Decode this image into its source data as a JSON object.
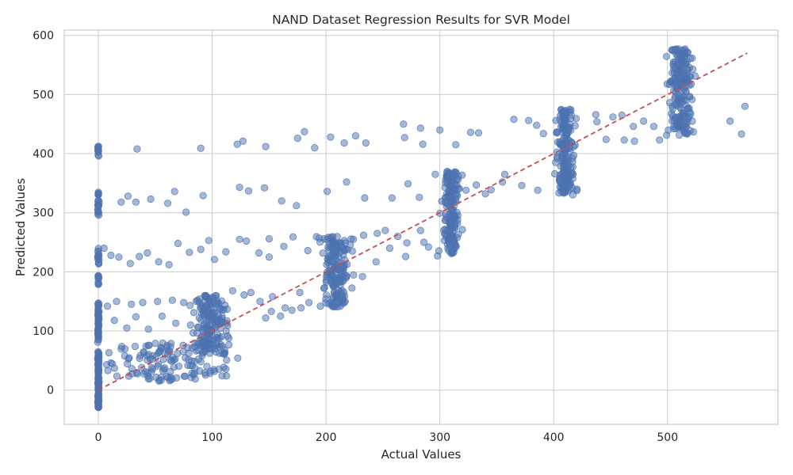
{
  "chart_data": {
    "type": "scatter",
    "title": "NAND Dataset Regression Results for SVR Model",
    "xlabel": "Actual Values",
    "ylabel": "Predicted Values",
    "xlim": [
      -30,
      597
    ],
    "ylim": [
      -58,
      609
    ],
    "x_ticks": [
      0,
      100,
      200,
      300,
      400,
      500
    ],
    "y_ticks": [
      0,
      100,
      200,
      300,
      400,
      500,
      600
    ],
    "grid": true,
    "legend": "none",
    "point_color": "#4c72b0",
    "point_alpha": 0.5,
    "reference_line": {
      "style": "dashed",
      "color": "#c44e52",
      "from": [
        0,
        0
      ],
      "to": [
        570,
        570
      ]
    },
    "clusters": [
      {
        "x_center": 0,
        "x_spread": 0.5,
        "y_min": -30,
        "y_max": 65,
        "count": 110
      },
      {
        "x_center": 0,
        "x_spread": 0.5,
        "y_min": 80,
        "y_max": 150,
        "count": 45
      },
      {
        "x_center": 0,
        "x_spread": 0.5,
        "y_min": 178,
        "y_max": 240,
        "count": 22
      },
      {
        "x_center": 0,
        "x_spread": 0.5,
        "y_min": 288,
        "y_max": 335,
        "count": 22
      },
      {
        "x_center": 0,
        "x_spread": 0.5,
        "y_min": 394,
        "y_max": 413,
        "count": 10
      },
      {
        "x_center": 60,
        "x_spread": 50,
        "y_min": 15,
        "y_max": 80,
        "count": 130
      },
      {
        "x_center": 100,
        "x_spread": 15,
        "y_min": 60,
        "y_max": 160,
        "count": 170
      },
      {
        "x_center": 210,
        "x_spread": 12,
        "y_min": 140,
        "y_max": 260,
        "count": 170
      },
      {
        "x_center": 310,
        "x_spread": 7,
        "y_min": 230,
        "y_max": 370,
        "count": 170
      },
      {
        "x_center": 410,
        "x_spread": 8,
        "y_min": 330,
        "y_max": 475,
        "count": 180
      },
      {
        "x_center": 512,
        "x_spread": 10,
        "y_min": 430,
        "y_max": 578,
        "count": 200
      }
    ],
    "points": [
      [
        122,
        416
      ],
      [
        127,
        421
      ],
      [
        147,
        412
      ],
      [
        175,
        426
      ],
      [
        181,
        437
      ],
      [
        190,
        410
      ],
      [
        204,
        428
      ],
      [
        216,
        418
      ],
      [
        226,
        430
      ],
      [
        235,
        418
      ],
      [
        268,
        450
      ],
      [
        283,
        443
      ],
      [
        300,
        440
      ],
      [
        314,
        415
      ],
      [
        34,
        408
      ],
      [
        90,
        409
      ],
      [
        269,
        427
      ],
      [
        285,
        416
      ],
      [
        327,
        436
      ],
      [
        334,
        435
      ],
      [
        20,
        318
      ],
      [
        26,
        328
      ],
      [
        33,
        318
      ],
      [
        46,
        323
      ],
      [
        61,
        316
      ],
      [
        67,
        336
      ],
      [
        77,
        301
      ],
      [
        92,
        329
      ],
      [
        124,
        343
      ],
      [
        132,
        337
      ],
      [
        146,
        342
      ],
      [
        161,
        320
      ],
      [
        174,
        312
      ],
      [
        201,
        336
      ],
      [
        218,
        352
      ],
      [
        234,
        325
      ],
      [
        258,
        325
      ],
      [
        272,
        349
      ],
      [
        282,
        326
      ],
      [
        296,
        365
      ],
      [
        323,
        338
      ],
      [
        332,
        347
      ],
      [
        345,
        339
      ],
      [
        357,
        365
      ],
      [
        365,
        458
      ],
      [
        378,
        456
      ],
      [
        385,
        448
      ],
      [
        391,
        434
      ],
      [
        437,
        466
      ],
      [
        452,
        462
      ],
      [
        460,
        465
      ],
      [
        470,
        446
      ],
      [
        479,
        455
      ],
      [
        488,
        446
      ],
      [
        493,
        423
      ],
      [
        555,
        455
      ],
      [
        565,
        433
      ],
      [
        568,
        480
      ],
      [
        438,
        454
      ],
      [
        446,
        424
      ],
      [
        462,
        423
      ],
      [
        471,
        421
      ],
      [
        5,
        240
      ],
      [
        11,
        228
      ],
      [
        18,
        225
      ],
      [
        28,
        214
      ],
      [
        36,
        226
      ],
      [
        43,
        232
      ],
      [
        53,
        217
      ],
      [
        62,
        212
      ],
      [
        70,
        248
      ],
      [
        80,
        233
      ],
      [
        90,
        238
      ],
      [
        97,
        253
      ],
      [
        102,
        221
      ],
      [
        112,
        234
      ],
      [
        124,
        255
      ],
      [
        130,
        252
      ],
      [
        141,
        232
      ],
      [
        150,
        256
      ],
      [
        163,
        243
      ],
      [
        171,
        259
      ],
      [
        184,
        236
      ],
      [
        194,
        257
      ],
      [
        224,
        255
      ],
      [
        233,
        262
      ],
      [
        245,
        265
      ],
      [
        256,
        240
      ],
      [
        263,
        260
      ],
      [
        271,
        249
      ],
      [
        283,
        270
      ],
      [
        290,
        242
      ],
      [
        298,
        227
      ],
      [
        340,
        332
      ],
      [
        355,
        352
      ],
      [
        372,
        346
      ],
      [
        386,
        338
      ],
      [
        8,
        142
      ],
      [
        16,
        150
      ],
      [
        29,
        145
      ],
      [
        39,
        148
      ],
      [
        52,
        150
      ],
      [
        65,
        152
      ],
      [
        75,
        148
      ],
      [
        84,
        131
      ],
      [
        118,
        168
      ],
      [
        128,
        161
      ],
      [
        134,
        165
      ],
      [
        142,
        150
      ],
      [
        153,
        158
      ],
      [
        164,
        139
      ],
      [
        177,
        165
      ],
      [
        185,
        148
      ],
      [
        14,
        118
      ],
      [
        25,
        105
      ],
      [
        33,
        124
      ],
      [
        44,
        103
      ],
      [
        56,
        125
      ],
      [
        68,
        113
      ],
      [
        81,
        110
      ],
      [
        147,
        122
      ],
      [
        152,
        133
      ],
      [
        160,
        125
      ],
      [
        170,
        135
      ],
      [
        178,
        139
      ],
      [
        195,
        142
      ],
      [
        232,
        192
      ],
      [
        244,
        217
      ],
      [
        252,
        270
      ],
      [
        270,
        226
      ],
      [
        286,
        250
      ],
      [
        304,
        253
      ],
      [
        40,
        63
      ],
      [
        48,
        58
      ],
      [
        150,
        225
      ]
    ]
  }
}
